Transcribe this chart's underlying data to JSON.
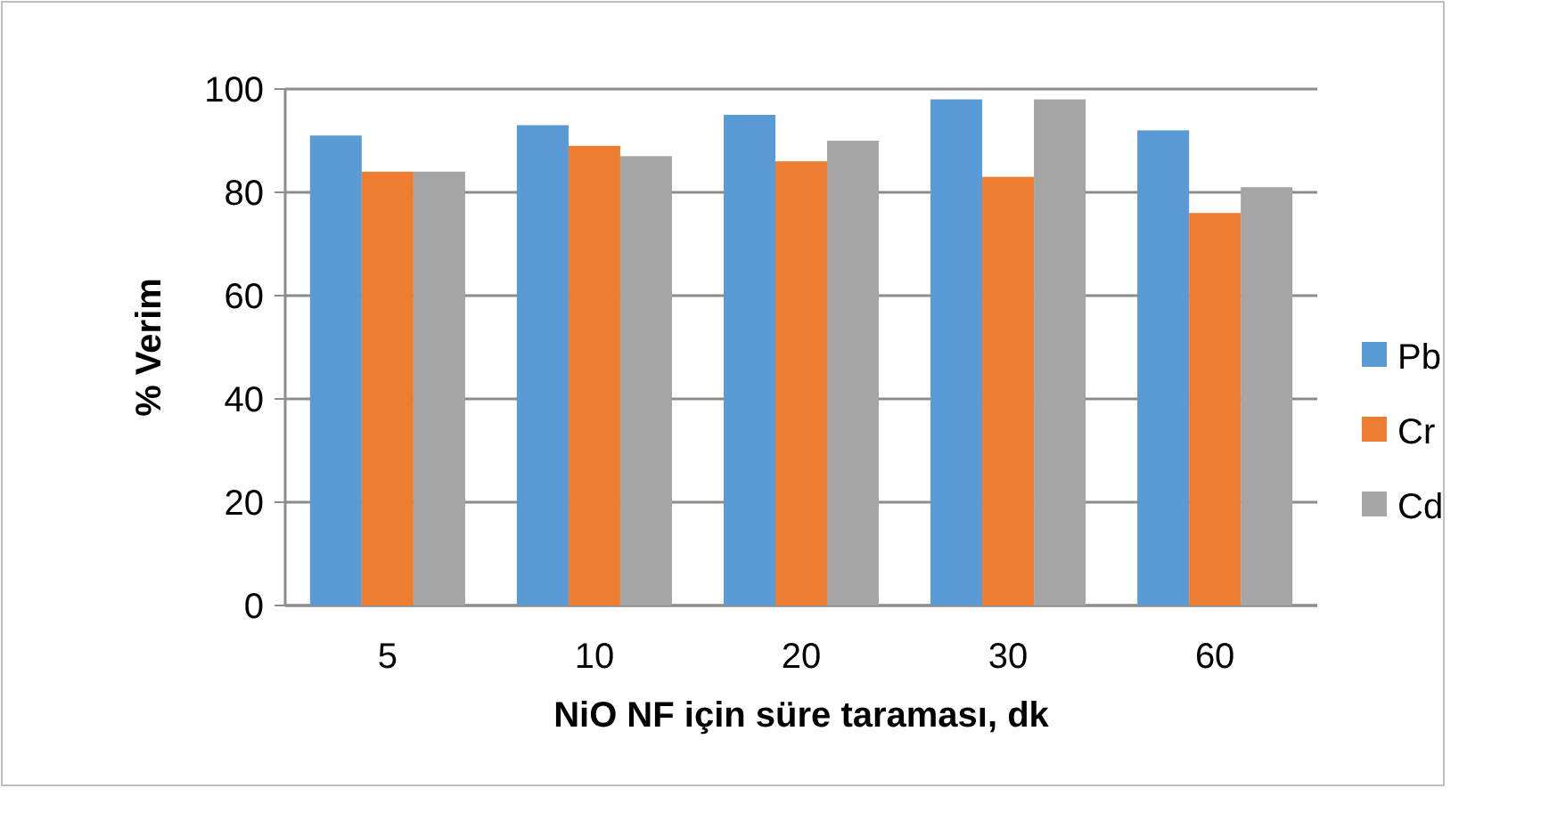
{
  "chart_data": {
    "type": "bar",
    "xlabel": "NiO NF için süre taraması, dk",
    "ylabel": "% Verim",
    "categories": [
      "5",
      "10",
      "20",
      "30",
      "60"
    ],
    "series": [
      {
        "name": "Pb",
        "color": "#5b9bd5",
        "values": [
          91,
          93,
          95,
          98,
          92
        ]
      },
      {
        "name": "Cr",
        "color": "#ed7d31",
        "values": [
          84,
          89,
          86,
          83,
          76
        ]
      },
      {
        "name": "Cd",
        "color": "#a5a5a5",
        "values": [
          84,
          87,
          90,
          98,
          81
        ]
      }
    ],
    "ylim": [
      0,
      100
    ],
    "yticks": [
      0,
      20,
      40,
      60,
      80,
      100
    ],
    "grid": "y",
    "legend": "right"
  }
}
